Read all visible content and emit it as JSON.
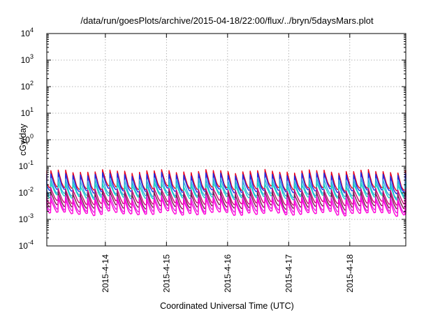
{
  "chart_data": {
    "type": "line",
    "title": "/data/run/goesPlots/archive/2015-04-18/22:00/flux/../bryn/5daysMars.plot",
    "xlabel": "Coordinated Universal Time (UTC)",
    "ylabel": "cGy/day",
    "y_scale": "log",
    "ylim": [
      0.0001,
      10000
    ],
    "y_ticks": [
      {
        "base": "10",
        "exp": "-4",
        "value": 0.0001
      },
      {
        "base": "10",
        "exp": "-3",
        "value": 0.001
      },
      {
        "base": "10",
        "exp": "-2",
        "value": 0.01
      },
      {
        "base": "10",
        "exp": "-1",
        "value": 0.1
      },
      {
        "base": "10",
        "exp": "0",
        "value": 1
      },
      {
        "base": "10",
        "exp": "1",
        "value": 10
      },
      {
        "base": "10",
        "exp": "2",
        "value": 100
      },
      {
        "base": "10",
        "exp": "3",
        "value": 1000
      },
      {
        "base": "10",
        "exp": "4",
        "value": 10000
      }
    ],
    "xlim": [
      "2015-04-13 01:00",
      "2015-04-18 22:00"
    ],
    "x_ticks": [
      {
        "label": "2015-4-14",
        "value": "2015-04-14 00:00"
      },
      {
        "label": "2015-4-15",
        "value": "2015-04-15 00:00"
      },
      {
        "label": "2015-4-16",
        "value": "2015-04-16 00:00"
      },
      {
        "label": "2015-4-17",
        "value": "2015-04-17 00:00"
      },
      {
        "label": "2015-4-18",
        "value": "2015-04-18 00:00"
      }
    ],
    "grid": true,
    "legend": "none",
    "period_hours": 2.9,
    "series": [
      {
        "color": "#e8001c",
        "low": 0.016,
        "high": 0.065
      },
      {
        "color": "#1a2ce8",
        "low": 0.013,
        "high": 0.05
      },
      {
        "color": "#2fa8e0",
        "low": 0.009,
        "high": 0.032
      },
      {
        "color": "#16d4c4",
        "low": 0.0075,
        "high": 0.022
      },
      {
        "color": "#cc0077",
        "low": 0.0045,
        "high": 0.0135
      },
      {
        "color": "#7a1e4a",
        "low": 0.0032,
        "high": 0.01
      },
      {
        "color": "#e020e0",
        "low": 0.0023,
        "high": 0.0072
      },
      {
        "color": "#ff00d8",
        "low": 0.0018,
        "high": 0.0056
      }
    ]
  }
}
